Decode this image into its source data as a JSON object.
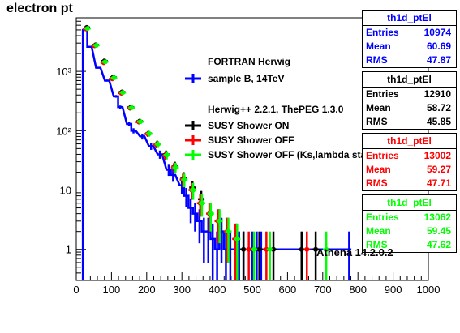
{
  "chart_data": {
    "type": "histogram",
    "title": "electron pt",
    "xlim": [
      0,
      1000
    ],
    "ylim": [
      0.3,
      8000
    ],
    "ylog": true,
    "grid": false,
    "x_ticks": [
      "0",
      "100",
      "200",
      "300",
      "400",
      "500",
      "600",
      "700",
      "800",
      "900",
      "1000"
    ],
    "y_ticks": [
      "1",
      "10",
      "10²",
      "10³"
    ],
    "legend_heading_1": "FORTRAN Herwig",
    "legend_heading_2": "Herwig++ 2.2.1, ThePEG 1.3.0",
    "annotation": "Athena 14.2.0.2",
    "series": [
      {
        "name": "sample B, 14TeV",
        "color": "#0000ff",
        "style": "step",
        "stats": {
          "histname": "th1d_ptEl",
          "entries": "10974",
          "mean": "60.69",
          "rms": "47.87"
        },
        "points": [
          [
            25,
            5000
          ],
          [
            37.5,
            2600
          ],
          [
            62.5,
            1150
          ],
          [
            87.5,
            700
          ],
          [
            112.5,
            380
          ],
          [
            125,
            250
          ],
          [
            150,
            130
          ],
          [
            162.5,
            100
          ],
          [
            187.5,
            80
          ],
          [
            212.5,
            55
          ],
          [
            237.5,
            40
          ],
          [
            262.5,
            22
          ],
          [
            275,
            18
          ],
          [
            300,
            12
          ],
          [
            312.5,
            8
          ],
          [
            325,
            5
          ],
          [
            337.5,
            4
          ],
          [
            350,
            3
          ],
          [
            362.5,
            2
          ],
          [
            375,
            2
          ],
          [
            387.5,
            1.5
          ],
          [
            400,
            1
          ],
          [
            412.5,
            2
          ],
          [
            425,
            1
          ],
          [
            437.5,
            1
          ],
          [
            462.5,
            1
          ],
          [
            475,
            1
          ],
          [
            500,
            1
          ],
          [
            512.5,
            1
          ],
          [
            525,
            1
          ],
          [
            775,
            1
          ]
        ]
      },
      {
        "name": "SUSY Shower ON",
        "color": "#000000",
        "style": "markers",
        "stats": {
          "histname": "th1d_ptEl",
          "entries": "12910",
          "mean": "58.72",
          "rms": "45.85"
        },
        "points": [
          [
            30,
            5500
          ],
          [
            55,
            2800
          ],
          [
            80,
            1500
          ],
          [
            105,
            800
          ],
          [
            130,
            450
          ],
          [
            155,
            250
          ],
          [
            180,
            145
          ],
          [
            205,
            90
          ],
          [
            230,
            60
          ],
          [
            255,
            40
          ],
          [
            280,
            25
          ],
          [
            305,
            16
          ],
          [
            330,
            11
          ],
          [
            355,
            7
          ],
          [
            380,
            4
          ],
          [
            405,
            3
          ],
          [
            430,
            2
          ],
          [
            455,
            1.5
          ],
          [
            475,
            1
          ],
          [
            520,
            1
          ],
          [
            560,
            1
          ],
          [
            640,
            1
          ],
          [
            680,
            1
          ]
        ]
      },
      {
        "name": "SUSY Shower OFF",
        "color": "#ff0000",
        "style": "markers",
        "stats": {
          "histname": "th1d_ptEl",
          "entries": "13002",
          "mean": "59.27",
          "rms": "47.71"
        },
        "points": [
          [
            28,
            5200
          ],
          [
            52,
            2700
          ],
          [
            78,
            1400
          ],
          [
            102,
            750
          ],
          [
            128,
            430
          ],
          [
            153,
            240
          ],
          [
            178,
            140
          ],
          [
            203,
            88
          ],
          [
            228,
            58
          ],
          [
            253,
            38
          ],
          [
            278,
            24
          ],
          [
            303,
            15
          ],
          [
            328,
            10
          ],
          [
            352,
            6
          ],
          [
            378,
            4
          ],
          [
            402,
            3
          ],
          [
            428,
            2
          ],
          [
            452,
            1.5
          ],
          [
            490,
            1
          ],
          [
            540,
            1
          ],
          [
            655,
            1
          ]
        ]
      },
      {
        "name": "SUSY Shower OFF (Ks,lambda stable)",
        "color": "#00ff00",
        "style": "markers",
        "stats": {
          "histname": "th1d_ptEl",
          "entries": "13062",
          "mean": "59.45",
          "rms": "47.62"
        },
        "points": [
          [
            32,
            5300
          ],
          [
            57,
            2750
          ],
          [
            82,
            1450
          ],
          [
            107,
            780
          ],
          [
            132,
            440
          ],
          [
            157,
            245
          ],
          [
            182,
            142
          ],
          [
            207,
            89
          ],
          [
            232,
            59
          ],
          [
            257,
            39
          ],
          [
            282,
            24
          ],
          [
            307,
            15
          ],
          [
            332,
            10
          ],
          [
            357,
            6
          ],
          [
            382,
            4
          ],
          [
            407,
            3
          ],
          [
            432,
            2
          ],
          [
            457,
            1.5
          ],
          [
            505,
            1
          ],
          [
            550,
            1
          ],
          [
            710,
            1
          ]
        ]
      }
    ]
  }
}
